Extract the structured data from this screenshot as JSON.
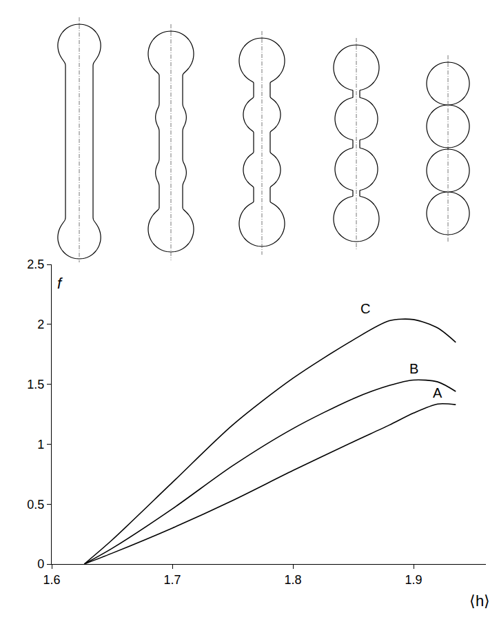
{
  "chart_data": {
    "type": "line",
    "x_label": "⟨h⟩",
    "y_label": "f",
    "x": [
      1.627,
      1.65,
      1.7,
      1.75,
      1.8,
      1.85,
      1.88,
      1.9,
      1.92,
      1.935
    ],
    "series": [
      {
        "name": "A",
        "color": "#000000",
        "values": [
          0,
          0.09,
          0.3,
          0.53,
          0.78,
          1.02,
          1.16,
          1.26,
          1.335,
          1.33
        ]
      },
      {
        "name": "B",
        "color": "#000000",
        "values": [
          0,
          0.13,
          0.46,
          0.82,
          1.13,
          1.38,
          1.49,
          1.535,
          1.52,
          1.44
        ]
      },
      {
        "name": "C",
        "color": "#000000",
        "values": [
          0,
          0.2,
          0.68,
          1.16,
          1.55,
          1.87,
          2.03,
          2.04,
          1.97,
          1.85
        ]
      }
    ],
    "annotations": [
      {
        "text": "C",
        "x": 1.86,
        "y": 2.13
      },
      {
        "text": "B",
        "x": 1.9,
        "y": 1.63
      },
      {
        "text": "A",
        "x": 1.92,
        "y": 1.43
      }
    ],
    "xlim": [
      1.6,
      1.96
    ],
    "ylim": [
      0,
      2.5
    ],
    "xticks": [
      1.6,
      1.7,
      1.8,
      1.9
    ],
    "yticks": [
      0,
      0.5,
      1,
      1.5,
      2,
      2.5
    ],
    "grid": false
  }
}
